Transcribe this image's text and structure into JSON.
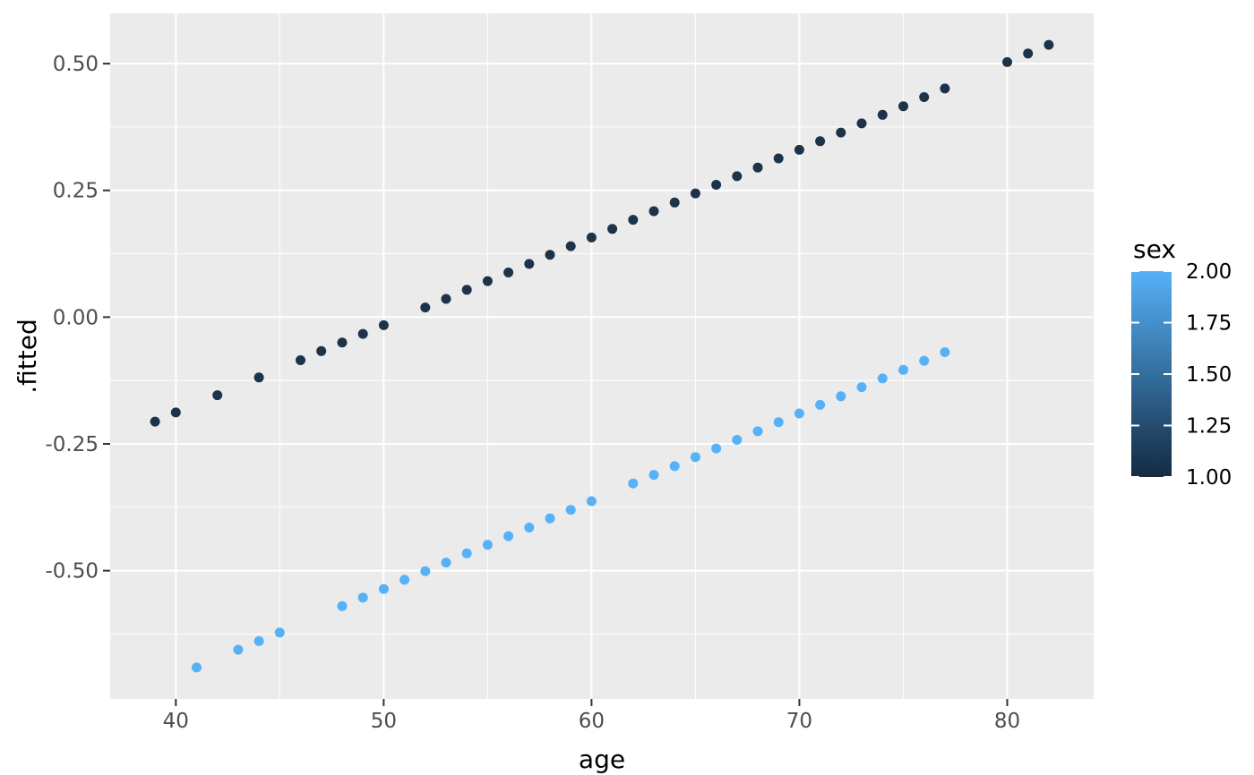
{
  "figure": {
    "background": "#ffffff"
  },
  "chart_data": {
    "type": "scatter",
    "title": "",
    "xlabel": "age",
    "ylabel": ".fitted",
    "panel_bg": "#ebebeb",
    "grid_color": "#ffffff",
    "tick_mark_color": "#333333",
    "tick_label_color": "#4d4d4d",
    "axis_title_color": "#000000",
    "x_domain": [
      36.84,
      84.16
    ],
    "y_domain": [
      -0.753,
      0.599
    ],
    "x_ticks": {
      "values": [
        40,
        50,
        60,
        70,
        80
      ],
      "labels": [
        "40",
        "50",
        "60",
        "70",
        "80"
      ]
    },
    "x_minor_ticks": [
      45,
      55,
      65,
      75
    ],
    "y_ticks": {
      "values": [
        0.5,
        0.25,
        0.0,
        -0.25,
        -0.5
      ],
      "labels": [
        "0.50",
        "0.25",
        "0.00",
        "-0.25",
        "-0.50"
      ]
    },
    "y_minor_ticks": [
      0.375,
      0.125,
      -0.125,
      -0.375,
      -0.625
    ],
    "point_radius": 5.5,
    "grid_major_width": 2,
    "grid_minor_width": 1,
    "series": [
      {
        "name": "sex = 1",
        "color": "#1d3349",
        "points": [
          [
            39,
            -0.206
          ],
          [
            40,
            -0.188
          ],
          [
            42,
            -0.154
          ],
          [
            44,
            -0.119
          ],
          [
            46,
            -0.085
          ],
          [
            47,
            -0.067
          ],
          [
            48,
            -0.05
          ],
          [
            49,
            -0.033
          ],
          [
            50,
            -0.016
          ],
          [
            52,
            0.019
          ],
          [
            53,
            0.036
          ],
          [
            54,
            0.054
          ],
          [
            55,
            0.071
          ],
          [
            56,
            0.088
          ],
          [
            57,
            0.105
          ],
          [
            58,
            0.123
          ],
          [
            59,
            0.14
          ],
          [
            60,
            0.157
          ],
          [
            61,
            0.174
          ],
          [
            62,
            0.192
          ],
          [
            63,
            0.209
          ],
          [
            64,
            0.226
          ],
          [
            65,
            0.244
          ],
          [
            66,
            0.261
          ],
          [
            67,
            0.278
          ],
          [
            68,
            0.295
          ],
          [
            69,
            0.313
          ],
          [
            70,
            0.33
          ],
          [
            71,
            0.347
          ],
          [
            72,
            0.364
          ],
          [
            73,
            0.382
          ],
          [
            74,
            0.399
          ],
          [
            75,
            0.416
          ],
          [
            76,
            0.434
          ],
          [
            77,
            0.451
          ],
          [
            80,
            0.503
          ],
          [
            81,
            0.52
          ],
          [
            82,
            0.537
          ]
        ]
      },
      {
        "name": "sex = 2",
        "color": "#56b1f7",
        "points": [
          [
            41,
            -0.691
          ],
          [
            43,
            -0.656
          ],
          [
            44,
            -0.639
          ],
          [
            45,
            -0.622
          ],
          [
            48,
            -0.57
          ],
          [
            49,
            -0.553
          ],
          [
            50,
            -0.536
          ],
          [
            51,
            -0.518
          ],
          [
            52,
            -0.501
          ],
          [
            53,
            -0.484
          ],
          [
            54,
            -0.466
          ],
          [
            55,
            -0.449
          ],
          [
            56,
            -0.432
          ],
          [
            57,
            -0.415
          ],
          [
            58,
            -0.397
          ],
          [
            59,
            -0.38
          ],
          [
            60,
            -0.363
          ],
          [
            62,
            -0.328
          ],
          [
            63,
            -0.311
          ],
          [
            64,
            -0.294
          ],
          [
            65,
            -0.276
          ],
          [
            66,
            -0.259
          ],
          [
            67,
            -0.242
          ],
          [
            68,
            -0.225
          ],
          [
            69,
            -0.207
          ],
          [
            70,
            -0.19
          ],
          [
            71,
            -0.173
          ],
          [
            72,
            -0.156
          ],
          [
            73,
            -0.138
          ],
          [
            74,
            -0.121
          ],
          [
            75,
            -0.104
          ],
          [
            76,
            -0.086
          ],
          [
            77,
            -0.069
          ]
        ]
      }
    ],
    "legend": {
      "title": "sex",
      "type": "colorbar",
      "position": "right",
      "domain": [
        1.0,
        2.0
      ],
      "breaks": [
        2.0,
        1.75,
        1.5,
        1.25,
        1.0
      ],
      "labels": [
        "2.00",
        "1.75",
        "1.50",
        "1.25",
        "1.00"
      ],
      "gradient_high": "#56b1f7",
      "gradient_low": "#132b43",
      "tick_color": "#ffffff"
    }
  }
}
